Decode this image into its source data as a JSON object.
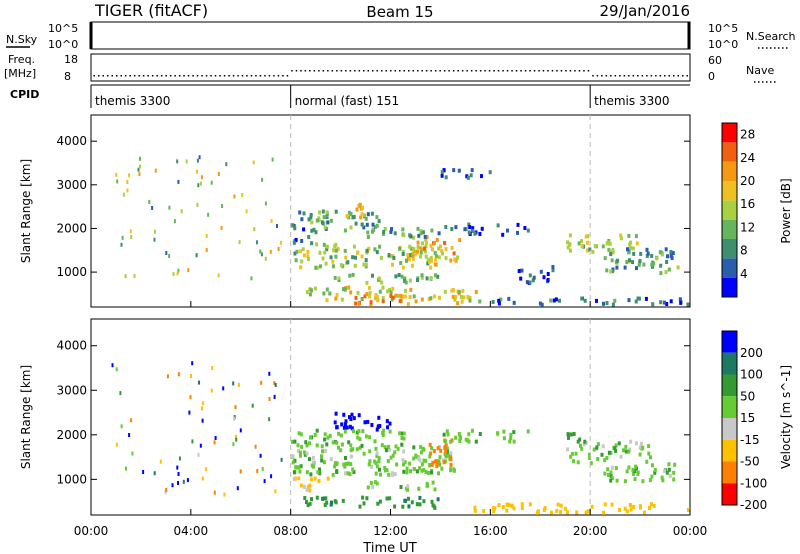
{
  "header": {
    "station": "TIGER (fitACF)",
    "beam": "Beam 15",
    "date": "29/Jan/2016"
  },
  "top_panels": {
    "nsky_label": "N.Sky",
    "nsky_ticks": [
      "10^5",
      "10^0"
    ],
    "nsearch_label": "N.Search",
    "nsearch_ticks": [
      "10^5",
      "10^0"
    ],
    "freq_label_1": "Freq.",
    "freq_label_2": "[MHz]",
    "freq_ticks": [
      "18",
      "8"
    ],
    "freq_values_mhz": [
      10,
      10,
      12,
      12,
      10
    ],
    "nave_label": "Nave",
    "nave_ticks": [
      "60",
      "0"
    ],
    "cpid_label": "CPID",
    "cpid_segments": [
      {
        "label": "themis 3300",
        "start_h": 0,
        "end_h": 8
      },
      {
        "label": "normal (fast) 151",
        "start_h": 8,
        "end_h": 20
      },
      {
        "label": "themis 3300",
        "start_h": 20,
        "end_h": 24
      }
    ]
  },
  "x_axis": {
    "label": "Time UT",
    "ticks": [
      "00:00",
      "04:00",
      "08:00",
      "12:00",
      "16:00",
      "20:00",
      "00:00"
    ]
  },
  "colors": {
    "power_scale": [
      "#0000ff",
      "#2a5dab",
      "#3d8f6f",
      "#66b55c",
      "#a9d040",
      "#f0c020",
      "#f59a10",
      "#f06010",
      "#ff0000"
    ],
    "velocity_scale": [
      "#ff0000",
      "#ff8000",
      "#ffc000",
      "#c8c8c8",
      "#66cc33",
      "#339933",
      "#1c7a64",
      "#0000ff"
    ]
  },
  "chart_data": [
    {
      "type": "heatmap",
      "name": "power",
      "ylabel": "Slant Range [km]",
      "yticks": [
        "1000",
        "2000",
        "3000",
        "4000"
      ],
      "ylim": [
        200,
        4600
      ],
      "xlim_hours": [
        0,
        24
      ],
      "colorbar_label": "Power [dB]",
      "colorbar_ticks": [
        "4",
        "8",
        "12",
        "16",
        "20",
        "24",
        "28"
      ],
      "colorbar_range": [
        0,
        30
      ],
      "patches": [
        {
          "t0": 8.0,
          "t1": 11.5,
          "r0": 1900,
          "r1": 2350,
          "v": 10
        },
        {
          "t0": 10.0,
          "t1": 11.0,
          "r0": 2200,
          "r1": 2500,
          "v": 20
        },
        {
          "t0": 8.0,
          "t1": 14.0,
          "r0": 1050,
          "r1": 1600,
          "v": 14
        },
        {
          "t0": 12.8,
          "t1": 14.8,
          "r0": 1100,
          "r1": 1800,
          "v": 20
        },
        {
          "t0": 11.0,
          "t1": 14.5,
          "r0": 1750,
          "r1": 1950,
          "v": 9
        },
        {
          "t0": 9.5,
          "t1": 14.0,
          "r0": 700,
          "r1": 900,
          "v": 12
        },
        {
          "t0": 8.5,
          "t1": 15.0,
          "r0": 300,
          "r1": 600,
          "v": 16
        },
        {
          "t0": 10.5,
          "t1": 13.0,
          "r0": 200,
          "r1": 450,
          "v": 22
        },
        {
          "t0": 14.2,
          "t1": 15.5,
          "r0": 200,
          "r1": 500,
          "v": 18
        },
        {
          "t0": 14.0,
          "t1": 17.5,
          "r0": 1800,
          "r1": 2050,
          "v": 6
        },
        {
          "t0": 17.0,
          "t1": 18.5,
          "r0": 700,
          "r1": 1100,
          "v": 4
        },
        {
          "t0": 19.0,
          "t1": 22.0,
          "r0": 1400,
          "r1": 1800,
          "v": 14
        },
        {
          "t0": 20.5,
          "t1": 23.5,
          "r0": 900,
          "r1": 1500,
          "v": 10
        },
        {
          "t0": 15.0,
          "t1": 24.0,
          "r0": 200,
          "r1": 350,
          "v": 6
        },
        {
          "t0": 8.0,
          "t1": 9.0,
          "r0": 1600,
          "r1": 2000,
          "v": 6
        },
        {
          "t0": 14.0,
          "t1": 16.0,
          "r0": 3100,
          "r1": 3300,
          "v": 4
        }
      ]
    },
    {
      "type": "heatmap",
      "name": "velocity",
      "ylabel": "Slant Range [km]",
      "yticks": [
        "1000",
        "2000",
        "3000",
        "4000"
      ],
      "ylim": [
        200,
        4600
      ],
      "xlim_hours": [
        0,
        24
      ],
      "colorbar_label": "Velocity [m s^-1]",
      "colorbar_ticks": [
        "200",
        "100",
        "50",
        "15",
        "-15",
        "-50",
        "-100",
        "-200"
      ],
      "colorbar_range": [
        -250,
        250
      ],
      "patches": [
        {
          "t0": 8.0,
          "t1": 14.5,
          "r0": 1050,
          "r1": 1700,
          "v": 0
        },
        {
          "t0": 9.5,
          "t1": 11.0,
          "r0": 2100,
          "r1": 2450,
          "v": 180
        },
        {
          "t0": 11.0,
          "t1": 12.0,
          "r0": 2050,
          "r1": 2350,
          "v": 120
        },
        {
          "t0": 13.5,
          "t1": 14.5,
          "r0": 1250,
          "r1": 1850,
          "v": -180
        },
        {
          "t0": 8.0,
          "t1": 12.5,
          "r0": 1700,
          "r1": 2050,
          "v": 5
        },
        {
          "t0": 8.5,
          "t1": 14.0,
          "r0": 300,
          "r1": 550,
          "v": 40
        },
        {
          "t0": 11.0,
          "t1": 14.0,
          "r0": 700,
          "r1": 900,
          "v": 0
        },
        {
          "t0": 14.0,
          "t1": 17.5,
          "r0": 1800,
          "r1": 2050,
          "v": 0
        },
        {
          "t0": 19.0,
          "t1": 22.5,
          "r0": 1300,
          "r1": 1800,
          "v": 0
        },
        {
          "t0": 19.0,
          "t1": 20.0,
          "r0": 1800,
          "r1": 2000,
          "v": 40
        },
        {
          "t0": 15.0,
          "t1": 24.0,
          "r0": 200,
          "r1": 400,
          "v": -80
        },
        {
          "t0": 20.5,
          "t1": 23.5,
          "r0": 900,
          "r1": 1300,
          "v": 0
        },
        {
          "t0": 8.0,
          "t1": 9.5,
          "r0": 700,
          "r1": 1000,
          "v": -60
        },
        {
          "t0": 12.0,
          "t1": 14.0,
          "r0": 1000,
          "r1": 1200,
          "v": 0
        }
      ]
    }
  ]
}
